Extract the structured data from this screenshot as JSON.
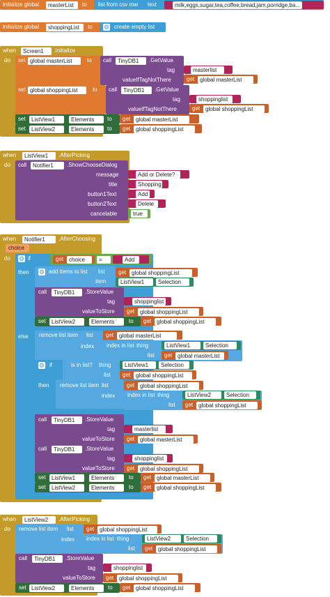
{
  "init1": {
    "label": "initialize global",
    "var": "masterList",
    "to": "to",
    "fn": "list from csv row",
    "text": "text",
    "value": "milk,eggs,sugar,tea,coffee,bread,jam,porridge,ba..."
  },
  "init2": {
    "label": "initialize global",
    "var": "shoppingList",
    "to": "to",
    "fn": "create empty list"
  },
  "screen": {
    "when": "when",
    "comp": "Screen1",
    "evt": ".Initialize",
    "do": "do",
    "set": "set",
    "to": "to",
    "call": "call",
    "get": "get",
    "masterVar": "global masterList",
    "shopVar": "global shoppingList",
    "tinydb": "TinyDB1",
    "getvalue": ".GetValue",
    "tag": "tag",
    "ifnot": "valueIfTagNotThere",
    "tag1": "masterlist",
    "tag2": "shoppinglist",
    "lv1": "ListView1",
    "lv2": "ListView2",
    "elements": "Elements"
  },
  "lv1pick": {
    "when": "when",
    "comp": "ListView1",
    "evt": ".AfterPicking",
    "do": "do",
    "call": "call",
    "notif": "Notifier1",
    "method": ".ShowChooseDialog",
    "message": "message",
    "title": "title",
    "b1": "button1Text",
    "b2": "button2Text",
    "cancel": "cancelable",
    "msgval": "Add or Delete?",
    "titleval": "Shopping",
    "b1val": "Add",
    "b2val": "Delete",
    "cancelval": "true"
  },
  "notifAC": {
    "when": "when",
    "comp": "Notifier1",
    "evt": ".AfterChoosing",
    "param": "choice",
    "do": "do",
    "if": "if",
    "then": "then",
    "else": "else",
    "get": "get",
    "choice": "choice",
    "eq": "=",
    "add": "Add",
    "additems": "add items to list",
    "list": "list",
    "item": "item",
    "shopVar": "global shoppingList",
    "masterVar": "global masterList",
    "lv1": "ListView1",
    "lv2": "ListView2",
    "selection": "Selection",
    "call": "call",
    "tinydb": "TinyDB1",
    "store": ".StoreValue",
    "tag": "tag",
    "vts": "valueToStore",
    "tag1": "masterlist",
    "tag2": "shoppinglist",
    "set": "set",
    "to": "to",
    "elements": "Elements",
    "remove": "remove list item",
    "index": "index",
    "indexin": "index in list",
    "thing": "thing",
    "isin": "is in list?"
  },
  "lv2pick": {
    "when": "when",
    "comp": "ListView2",
    "evt": ".AfterPicking",
    "do": "do",
    "remove": "remove list item",
    "list": "list",
    "get": "get",
    "shopVar": "global shoppingList",
    "index": "index",
    "indexin": "index in list",
    "thing": "thing",
    "selection": "Selection",
    "lv2": "ListView2",
    "call": "call",
    "tinydb": "TinyDB1",
    "store": ".StoreValue",
    "tag": "tag",
    "vts": "valueToStore",
    "tag2": "shoppinglist",
    "set": "set",
    "to": "to",
    "elements": "Elements"
  }
}
